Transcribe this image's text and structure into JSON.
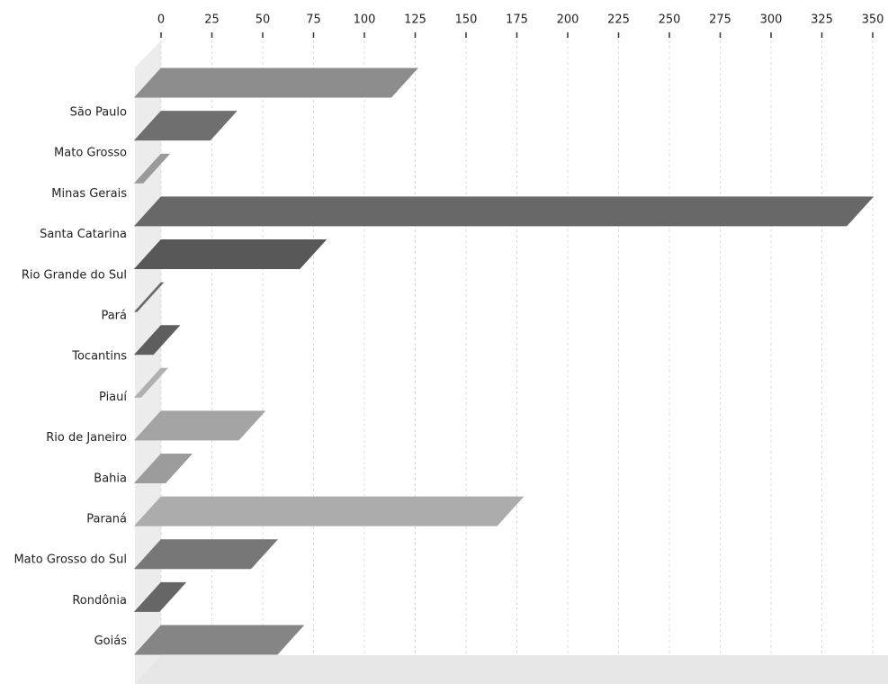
{
  "chart_data": {
    "type": "bar",
    "categories": [
      "São Paulo",
      "Mato Grosso",
      "Minas Gerais",
      "Santa Catarina",
      "Rio Grande do Sul",
      "Pará",
      "Tocantins",
      "Piauí",
      "Rio de Janeiro",
      "Bahia",
      "Paraná",
      "Mato Grosso do Sul",
      "Rondônia",
      "Goiás"
    ],
    "values": [
      126,
      37,
      4,
      350,
      81,
      1,
      9,
      3,
      51,
      15,
      178,
      57,
      12,
      70
    ],
    "colors": [
      "#8c8c8c",
      "#6f6f6f",
      "#9a9a9a",
      "#686868",
      "#585858",
      "#6a6a6a",
      "#5e5e5e",
      "#b0b0b0",
      "#a4a4a4",
      "#9c9c9c",
      "#acacac",
      "#777777",
      "#666666",
      "#858585"
    ],
    "xlim": [
      0,
      350
    ],
    "xticks": [
      0,
      25,
      50,
      75,
      100,
      125,
      150,
      175,
      200,
      225,
      250,
      275,
      300,
      325,
      350
    ],
    "grid": true
  }
}
